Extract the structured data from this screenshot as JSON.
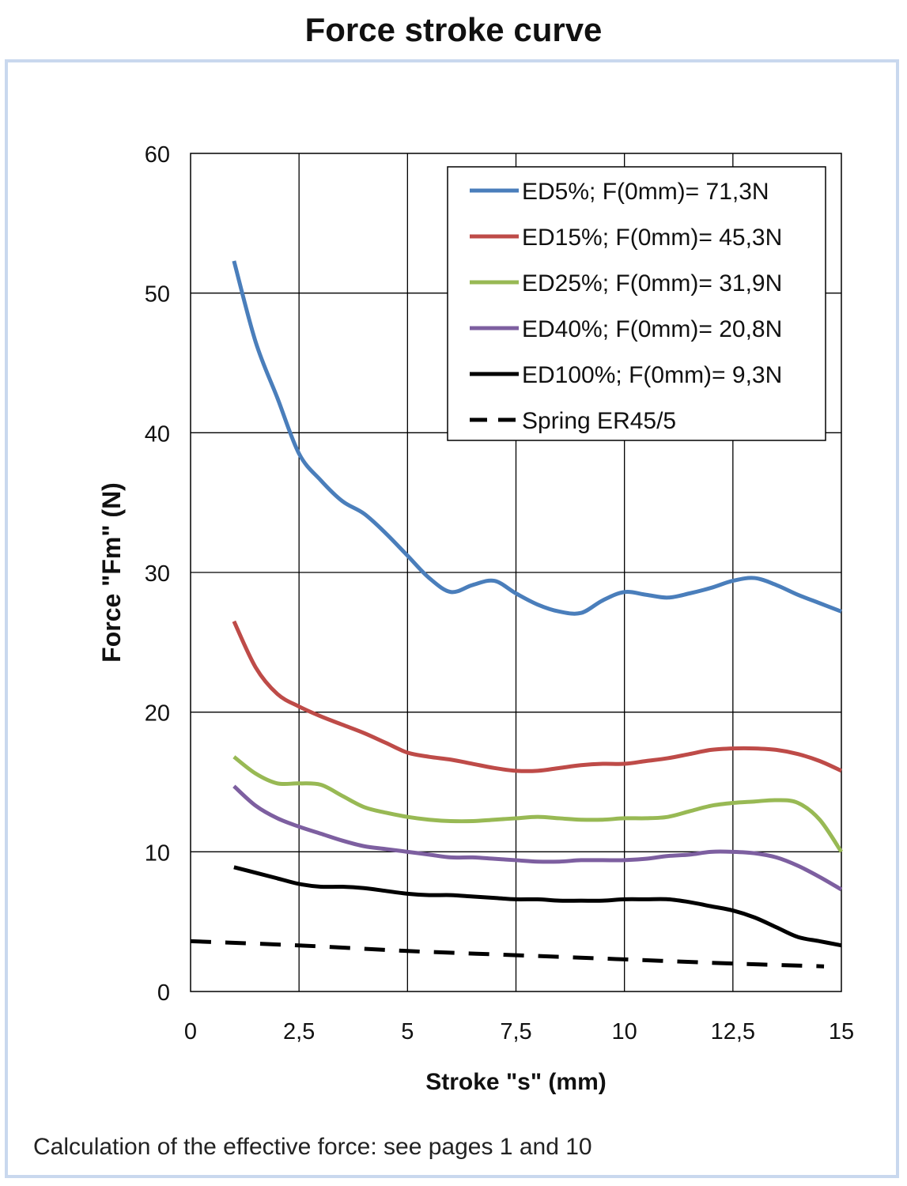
{
  "title": "Force stroke curve",
  "footnote": "Calculation of the effective force: see pages 1 and 10",
  "chart_data": {
    "type": "line",
    "xlabel": "Stroke \"s\" (mm)",
    "ylabel": "Force \"Fm\" (N)",
    "xlim": [
      0,
      15
    ],
    "ylim": [
      0,
      60
    ],
    "xticks": [
      "0",
      "2,5",
      "5",
      "7,5",
      "10",
      "12,5",
      "15"
    ],
    "yticks": [
      "0",
      "10",
      "20",
      "30",
      "40",
      "50",
      "60"
    ],
    "grid": true,
    "legend_position": "top-right",
    "series": [
      {
        "name": "ED5%; F(0mm)= 71,3N",
        "color": "#4a7ebb",
        "dash": "solid",
        "x": [
          1,
          1.5,
          2,
          2.5,
          3,
          3.5,
          4,
          4.5,
          5,
          5.5,
          6,
          6.5,
          7,
          7.5,
          8,
          8.5,
          9,
          9.5,
          10,
          10.5,
          11,
          11.5,
          12,
          12.5,
          13,
          13.5,
          14,
          14.5,
          15
        ],
        "y": [
          52.3,
          46.5,
          42.5,
          38.5,
          36.6,
          35.1,
          34.2,
          32.8,
          31.2,
          29.6,
          28.6,
          29.1,
          29.4,
          28.5,
          27.7,
          27.2,
          27.1,
          28.0,
          28.6,
          28.4,
          28.2,
          28.5,
          28.9,
          29.4,
          29.6,
          29.1,
          28.4,
          27.8,
          27.2
        ]
      },
      {
        "name": "ED15%; F(0mm)= 45,3N",
        "color": "#be4b48",
        "dash": "solid",
        "x": [
          1,
          1.5,
          2,
          2.5,
          3,
          3.5,
          4,
          4.5,
          5,
          5.5,
          6,
          6.5,
          7,
          7.5,
          8,
          8.5,
          9,
          9.5,
          10,
          10.5,
          11,
          11.5,
          12,
          12.5,
          13,
          13.5,
          14,
          14.5,
          15
        ],
        "y": [
          26.5,
          23.2,
          21.3,
          20.4,
          19.7,
          19.1,
          18.5,
          17.8,
          17.1,
          16.8,
          16.6,
          16.3,
          16.0,
          15.8,
          15.8,
          16.0,
          16.2,
          16.3,
          16.3,
          16.5,
          16.7,
          17.0,
          17.3,
          17.4,
          17.4,
          17.3,
          17.0,
          16.5,
          15.8
        ]
      },
      {
        "name": "ED25%; F(0mm)= 31,9N",
        "color": "#98b954",
        "dash": "solid",
        "x": [
          1,
          1.5,
          2,
          2.5,
          3,
          3.5,
          4,
          4.5,
          5,
          5.5,
          6,
          6.5,
          7,
          7.5,
          8,
          8.5,
          9,
          9.5,
          10,
          10.5,
          11,
          11.5,
          12,
          12.5,
          13,
          13.5,
          14,
          14.5,
          15
        ],
        "y": [
          16.8,
          15.6,
          14.9,
          14.9,
          14.8,
          14.0,
          13.2,
          12.8,
          12.5,
          12.3,
          12.2,
          12.2,
          12.3,
          12.4,
          12.5,
          12.4,
          12.3,
          12.3,
          12.4,
          12.4,
          12.5,
          12.9,
          13.3,
          13.5,
          13.6,
          13.7,
          13.5,
          12.3,
          10.0
        ]
      },
      {
        "name": "ED40%; F(0mm)= 20,8N",
        "color": "#7d5fa0",
        "dash": "solid",
        "x": [
          1,
          1.5,
          2,
          2.5,
          3,
          3.5,
          4,
          4.5,
          5,
          5.5,
          6,
          6.5,
          7,
          7.5,
          8,
          8.5,
          9,
          9.5,
          10,
          10.5,
          11,
          11.5,
          12,
          12.5,
          13,
          13.5,
          14,
          14.5,
          15
        ],
        "y": [
          14.7,
          13.3,
          12.4,
          11.8,
          11.3,
          10.8,
          10.4,
          10.2,
          10.0,
          9.8,
          9.6,
          9.6,
          9.5,
          9.4,
          9.3,
          9.3,
          9.4,
          9.4,
          9.4,
          9.5,
          9.7,
          9.8,
          10.0,
          10.0,
          9.9,
          9.6,
          9.0,
          8.2,
          7.3
        ]
      },
      {
        "name": "ED100%; F(0mm)= 9,3N",
        "color": "#000000",
        "dash": "solid",
        "x": [
          1,
          1.5,
          2,
          2.5,
          3,
          3.5,
          4,
          4.5,
          5,
          5.5,
          6,
          6.5,
          7,
          7.5,
          8,
          8.5,
          9,
          9.5,
          10,
          10.5,
          11,
          11.5,
          12,
          12.5,
          13,
          13.5,
          14,
          14.5,
          15
        ],
        "y": [
          8.9,
          8.5,
          8.1,
          7.7,
          7.5,
          7.5,
          7.4,
          7.2,
          7.0,
          6.9,
          6.9,
          6.8,
          6.7,
          6.6,
          6.6,
          6.5,
          6.5,
          6.5,
          6.6,
          6.6,
          6.6,
          6.4,
          6.1,
          5.8,
          5.3,
          4.6,
          3.9,
          3.6,
          3.3
        ]
      },
      {
        "name": "Spring ER45/5",
        "color": "#000000",
        "dash": "dashed",
        "x": [
          0,
          2.5,
          5,
          7.5,
          10,
          12.5,
          14.6
        ],
        "y": [
          3.6,
          3.3,
          2.9,
          2.6,
          2.3,
          2.0,
          1.8
        ]
      }
    ]
  }
}
